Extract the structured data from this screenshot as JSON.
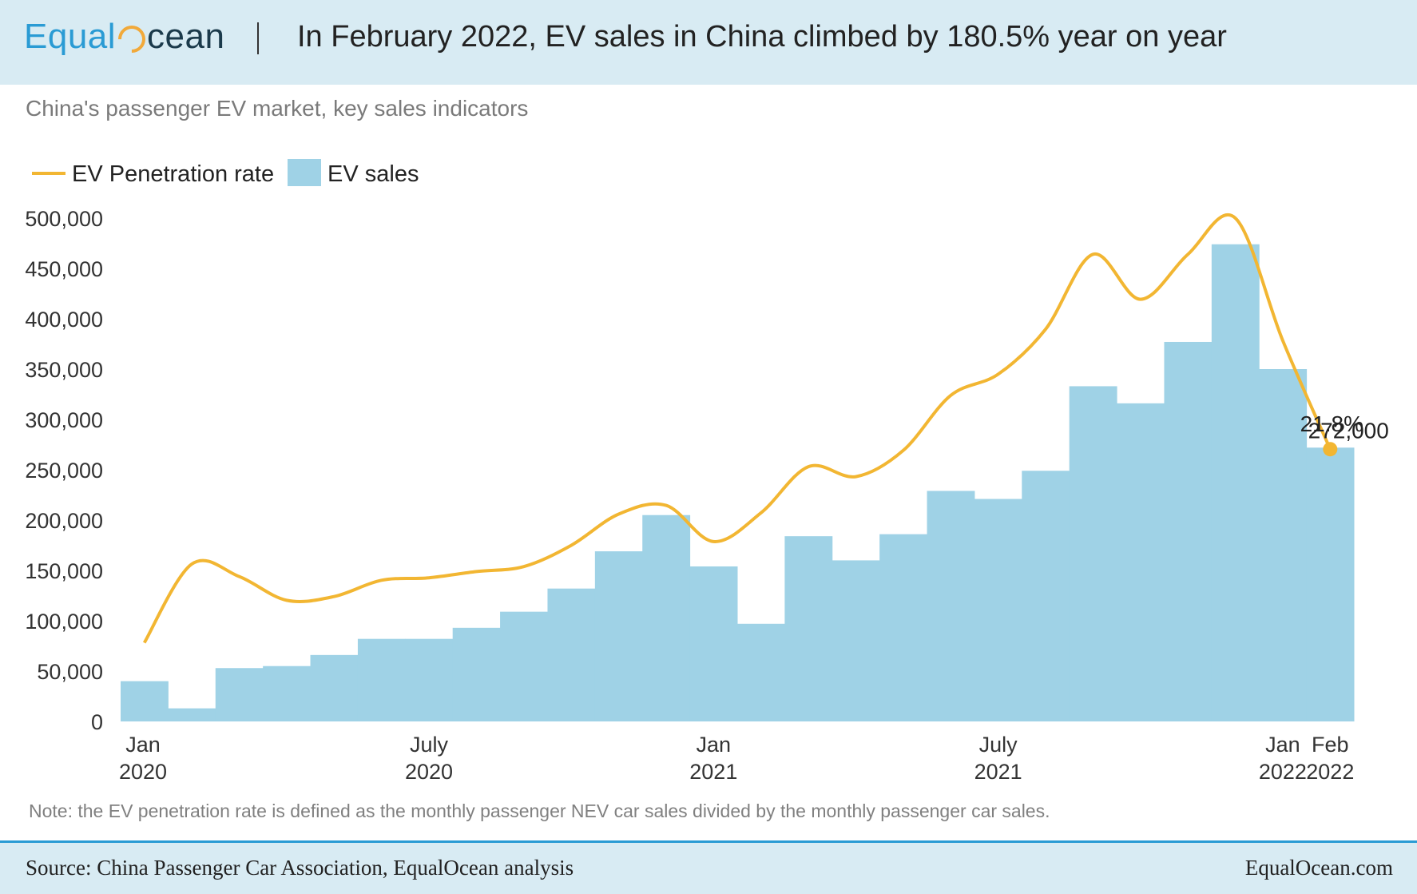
{
  "header": {
    "logo_prefix": "Equal",
    "logo_suffix": "cean",
    "title": "In February 2022, EV sales in China climbed by 180.5% year on year"
  },
  "subtitle": "China's passenger EV market, key sales indicators",
  "note": "Note: the EV penetration rate is defined as the monthly passenger NEV car sales divided by the monthly passenger car sales.",
  "footer": {
    "source": "Source: China Passenger Car Association, EqualOcean analysis",
    "site": "EqualOcean.com"
  },
  "colors": {
    "bar": "#9fd2e6",
    "line": "#f2b632",
    "header_bg": "#d8ebf3",
    "accent": "#2a9bd4"
  },
  "chart_data": {
    "type": "bar+line",
    "title": "China's passenger EV market, key sales indicators",
    "legend": [
      "EV Penetration rate",
      "EV sales"
    ],
    "legend_position": "top-left",
    "categories": [
      "Jan 2020",
      "Feb 2020",
      "Mar 2020",
      "Apr 2020",
      "May 2020",
      "Jun 2020",
      "Jul 2020",
      "Aug 2020",
      "Sep 2020",
      "Oct 2020",
      "Nov 2020",
      "Dec 2020",
      "Jan 2021",
      "Feb 2021",
      "Mar 2021",
      "Apr 2021",
      "May 2021",
      "Jun 2021",
      "Jul 2021",
      "Aug 2021",
      "Sep 2021",
      "Oct 2021",
      "Nov 2021",
      "Dec 2021",
      "Jan 2022",
      "Feb 2022"
    ],
    "x_tick_labels": [
      {
        "index": 0,
        "line1": "Jan",
        "line2": "2020"
      },
      {
        "index": 6,
        "line1": "July",
        "line2": "2020"
      },
      {
        "index": 12,
        "line1": "Jan",
        "line2": "2021"
      },
      {
        "index": 18,
        "line1": "July",
        "line2": "2021"
      },
      {
        "index": 24,
        "line1": "Jan",
        "line2": "2022"
      },
      {
        "index": 25,
        "line1": "Feb",
        "line2": "2022"
      }
    ],
    "series": [
      {
        "name": "EV sales",
        "type": "bar",
        "values": [
          40000,
          13000,
          53000,
          55000,
          66000,
          82000,
          82000,
          93000,
          109000,
          132000,
          169000,
          205000,
          154000,
          97000,
          184000,
          160000,
          186000,
          229000,
          221000,
          249000,
          333000,
          316000,
          377000,
          474000,
          350000,
          272000
        ]
      },
      {
        "name": "EV Penetration rate",
        "type": "line",
        "unit": "%",
        "values": [
          6.3,
          12.6,
          11.6,
          9.7,
          10.0,
          11.3,
          11.5,
          12.0,
          12.4,
          14.1,
          16.6,
          17.3,
          14.4,
          16.7,
          20.4,
          19.6,
          21.7,
          26.1,
          27.8,
          31.4,
          37.4,
          33.8,
          37.4,
          40.3,
          30.5,
          21.8
        ]
      }
    ],
    "ylim": [
      0,
      500000
    ],
    "yticks": [
      0,
      50000,
      100000,
      150000,
      200000,
      250000,
      300000,
      350000,
      400000,
      450000,
      500000
    ],
    "ytick_labels": [
      "0",
      "50,000",
      "100,000",
      "150,000",
      "200,000",
      "250,000",
      "300,000",
      "350,000",
      "400,000",
      "450,000",
      "500,000"
    ],
    "annotations": [
      {
        "series": "EV sales",
        "index": 25,
        "text": "272,000"
      },
      {
        "series": "EV Penetration rate",
        "index": 25,
        "text": "21.8%"
      }
    ],
    "grid": false
  }
}
